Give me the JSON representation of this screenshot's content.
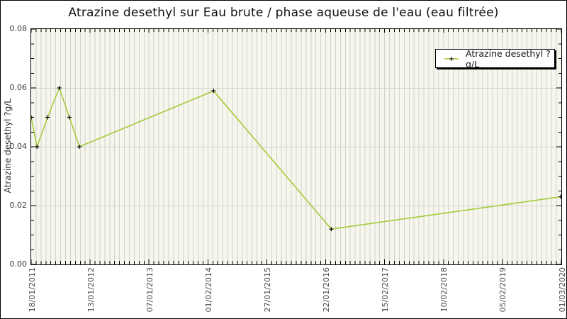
{
  "title": "Atrazine desethyl sur Eau brute / phase aqueuse de l'eau (eau filtrée)",
  "legend": {
    "label": "Atrazine desethyl ?g/L"
  },
  "colors": {
    "line": "#a4cb3a",
    "marker": "#000000",
    "plot_bg": "#f6f6ec",
    "grid": "#d2d2d2",
    "axis": "#000000",
    "tick_label": "#4a4a4a",
    "title_text": "#111111",
    "legend_shadow": "#000000"
  },
  "chart_data": {
    "type": "line",
    "title": "Atrazine desethyl sur Eau brute / phase aqueuse de l'eau (eau filtrée)",
    "ylabel": "Atrazine desethyl ?g/L",
    "xlabel": "",
    "ylim": [
      0,
      0.08
    ],
    "y_tick_labels": [
      "0.00",
      "0.02",
      "0.04",
      "0.06",
      "0.08"
    ],
    "y_tick_values": [
      0,
      0.02,
      0.04,
      0.06,
      0.08
    ],
    "y_minor_step": 0.005,
    "x_tick_labels": [
      "18/01/2011",
      "13/01/2012",
      "07/01/2013",
      "01/02/2014",
      "27/01/2015",
      "22/01/2016",
      "15/02/2017",
      "10/02/2018",
      "05/02/2019",
      "01/03/2020"
    ],
    "x_minor_divisions_per_major": 12,
    "grid": "vertical-minor and horizontal-major, light gray on cream",
    "legend_position": "top-right-inside",
    "series": [
      {
        "name": "Atrazine desethyl ?g/L",
        "color": "#a4cb3a",
        "marker": "plus",
        "marker_color": "#000000",
        "points": [
          {
            "x_frac": 0.0,
            "x_approx": "01/2011",
            "y": 0.05
          },
          {
            "x_frac": 0.011,
            "x_approx": "02/2011",
            "y": 0.04
          },
          {
            "x_frac": 0.031,
            "x_approx": "04/2011",
            "y": 0.05
          },
          {
            "x_frac": 0.053,
            "x_approx": "07/2011",
            "y": 0.06
          },
          {
            "x_frac": 0.072,
            "x_approx": "09/2011",
            "y": 0.05
          },
          {
            "x_frac": 0.091,
            "x_approx": "11/2011",
            "y": 0.04
          },
          {
            "x_frac": 0.344,
            "x_approx": "02/2014",
            "y": 0.059
          },
          {
            "x_frac": 0.566,
            "x_approx": "02/2016",
            "y": 0.012
          },
          {
            "x_frac": 0.999,
            "x_approx": "03/2020",
            "y": 0.023
          }
        ]
      }
    ]
  }
}
